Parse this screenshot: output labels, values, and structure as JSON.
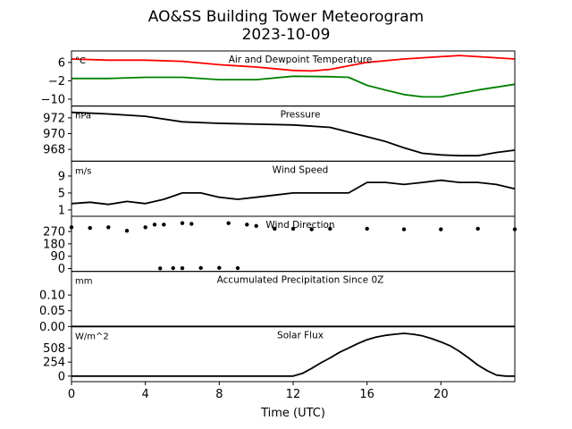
{
  "figure": {
    "title_line1": "AO&SS Building Tower Meteorogram",
    "title_line2": "2023-10-09",
    "xlabel": "Time (UTC)"
  },
  "chart_data": [
    {
      "type": "line",
      "title": "Air and Dewpoint Temperature",
      "unit": "°C",
      "ylim": [
        -13,
        11
      ],
      "yticks": [
        "6",
        "−2",
        "−10"
      ],
      "ytick_values": [
        6,
        -2,
        -10
      ],
      "series": [
        {
          "color": "#ff0000",
          "x": [
            0,
            2,
            4,
            6,
            8,
            10,
            12,
            13,
            14,
            16,
            18,
            20,
            21,
            22,
            24
          ],
          "y": [
            7.5,
            7,
            7,
            6.5,
            5,
            4,
            2.5,
            2.3,
            3,
            6,
            7.5,
            8.5,
            9,
            8.5,
            7.5
          ]
        },
        {
          "color": "#008000",
          "x": [
            0,
            2,
            4,
            6,
            8,
            10,
            12,
            14,
            15,
            16,
            17,
            18,
            19,
            20,
            21,
            22,
            24
          ],
          "y": [
            -1,
            -1,
            -0.5,
            -0.5,
            -1.5,
            -1.5,
            0,
            -0.2,
            -0.5,
            -4,
            -6,
            -8,
            -9,
            -9,
            -7.5,
            -6,
            -3.5
          ]
        }
      ]
    },
    {
      "type": "line",
      "title": "Pressure",
      "unit": "hPa",
      "ylim": [
        966.5,
        973.5
      ],
      "yticks": [
        "972",
        "970",
        "968"
      ],
      "ytick_values": [
        972,
        970,
        968
      ],
      "series": [
        {
          "color": "#000000",
          "x": [
            0,
            2,
            4,
            6,
            8,
            10,
            12,
            14,
            15,
            16,
            17,
            18,
            19,
            20,
            21,
            22,
            23,
            24
          ],
          "y": [
            972.7,
            972.5,
            972.2,
            971.5,
            971.3,
            971.2,
            971.1,
            970.8,
            970.2,
            969.6,
            969,
            968.2,
            967.5,
            967.3,
            967.2,
            967.2,
            967.6,
            967.9
          ]
        }
      ]
    },
    {
      "type": "line",
      "title": "Wind Speed",
      "unit": "m/s",
      "ylim": [
        -0.5,
        12.5
      ],
      "yticks": [
        "9",
        "5",
        "1"
      ],
      "ytick_values": [
        9,
        5,
        1
      ],
      "series": [
        {
          "color": "#000000",
          "x": [
            0,
            1,
            2,
            3,
            4,
            5,
            6,
            7,
            8,
            9,
            10,
            11,
            12,
            13,
            14,
            15,
            16,
            17,
            18,
            19,
            20,
            21,
            22,
            23,
            24
          ],
          "y": [
            2.5,
            2.8,
            2.3,
            3,
            2.5,
            3.5,
            5,
            5,
            4,
            3.5,
            4,
            4.5,
            5,
            5,
            5,
            5,
            7.5,
            7.5,
            7,
            7.5,
            8,
            7.5,
            7.5,
            7,
            6
          ]
        }
      ]
    },
    {
      "type": "scatter",
      "title": "Wind Direction",
      "unit": "",
      "ylim": [
        -20,
        380
      ],
      "yticks": [
        "270",
        "180",
        "90",
        "0"
      ],
      "ytick_values": [
        270,
        180,
        90,
        0
      ],
      "series": [
        {
          "color": "#000000",
          "x": [
            0,
            1,
            2,
            3,
            4,
            4.5,
            5,
            6,
            6.5,
            8.5,
            9.5,
            10,
            11,
            12,
            13,
            14,
            16,
            18,
            20,
            22,
            24
          ],
          "y": [
            300,
            295,
            300,
            275,
            300,
            320,
            320,
            330,
            325,
            330,
            320,
            310,
            290,
            290,
            285,
            290,
            290,
            285,
            285,
            290,
            285
          ]
        },
        {
          "color": "#000000",
          "x": [
            4.8,
            5.5,
            6,
            7,
            8,
            9
          ],
          "y": [
            2,
            4,
            3,
            5,
            6,
            4
          ]
        }
      ]
    },
    {
      "type": "line",
      "title": "Accumulated Precipitation Since 0Z",
      "unit": "mm",
      "ylim": [
        0,
        0.175
      ],
      "yticks": [
        "0.10",
        "0.05",
        "0.00"
      ],
      "ytick_values": [
        0.1,
        0.05,
        0
      ],
      "series": [
        {
          "color": "#000000",
          "x": [
            0,
            24
          ],
          "y": [
            0,
            0
          ]
        }
      ]
    },
    {
      "type": "line",
      "title": "Solar Flux",
      "unit": "W/m^2",
      "ylim": [
        -100,
        900
      ],
      "yticks": [
        "508",
        "254",
        "0"
      ],
      "ytick_values": [
        508,
        254,
        0
      ],
      "series": [
        {
          "color": "#000000",
          "x": [
            0,
            12,
            12.5,
            13,
            13.5,
            14,
            14.5,
            15,
            15.5,
            16,
            16.5,
            17,
            17.5,
            18,
            18.5,
            19,
            19.5,
            20,
            20.5,
            21,
            21.5,
            22,
            22.5,
            23,
            23.5,
            24
          ],
          "y": [
            0,
            0,
            50,
            140,
            240,
            330,
            430,
            510,
            590,
            660,
            710,
            740,
            760,
            775,
            760,
            730,
            680,
            620,
            550,
            450,
            330,
            200,
            100,
            20,
            0,
            0
          ]
        }
      ]
    }
  ],
  "x_axis": {
    "xlim": [
      0,
      24
    ],
    "ticks": [
      "0",
      "4",
      "8",
      "12",
      "16",
      "20"
    ],
    "tick_values": [
      0,
      4,
      8,
      12,
      16,
      20
    ]
  }
}
